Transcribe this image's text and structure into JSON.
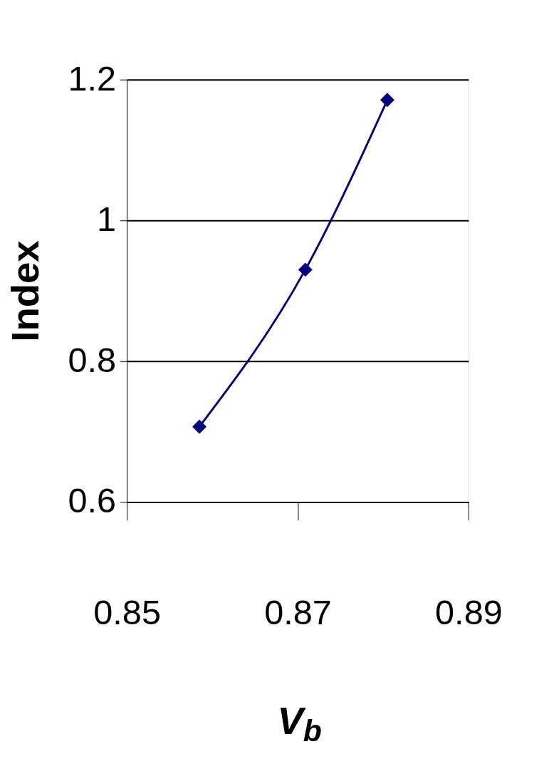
{
  "chart_data": {
    "type": "line",
    "xlabel": "V$_{b}$",
    "ylabel": "Index",
    "x": [
      0.8585,
      0.8709,
      0.8805
    ],
    "series": [
      {
        "color": "#000080",
        "values": [
          0.707,
          0.93,
          1.171
        ]
      }
    ],
    "xlim": [
      0.85,
      0.89
    ],
    "xticks": [
      0.85,
      0.87,
      0.89
    ],
    "ylim": [
      0.6,
      1.2
    ],
    "yticks": [
      0.6,
      0.8,
      1,
      1.2
    ],
    "grid": "y",
    "marker": "diamond",
    "line_style": "solid"
  }
}
